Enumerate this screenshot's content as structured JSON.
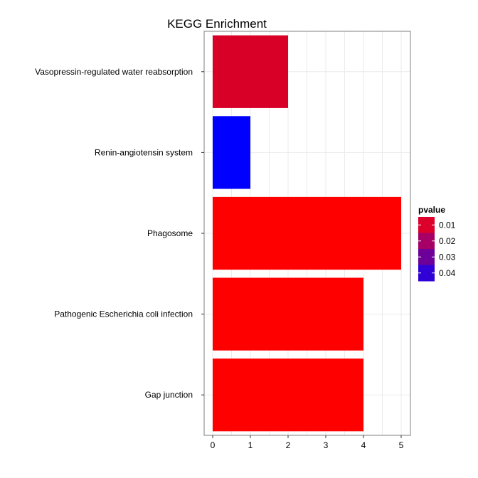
{
  "chart_data": {
    "type": "bar",
    "orientation": "horizontal",
    "title": "KEGG Enrichment",
    "xlabel": "",
    "ylabel": "",
    "categories": [
      "Vasopressin-regulated water reabsorption",
      "Renin-angiotensin system",
      "Phagosome",
      "Pathogenic Escherichia coli infection",
      "Gap junction"
    ],
    "values": [
      2,
      1,
      5,
      4,
      4
    ],
    "pvalues": [
      0.005,
      0.045,
      0.001,
      0.001,
      0.001
    ],
    "bar_colors": [
      "#d80027",
      "#0000ff",
      "#ff0000",
      "#ff0000",
      "#ff0000"
    ],
    "xlim": [
      0,
      5
    ],
    "xticks": [
      "0",
      "1",
      "2",
      "3",
      "4",
      "5"
    ],
    "grid": true,
    "legend": {
      "title": "pvalue",
      "position": "right",
      "labels": [
        "0.01",
        "0.02",
        "0.03",
        "0.04"
      ],
      "colors": [
        "#dc002a",
        "#a60066",
        "#6c0099",
        "#3000d6"
      ]
    }
  }
}
